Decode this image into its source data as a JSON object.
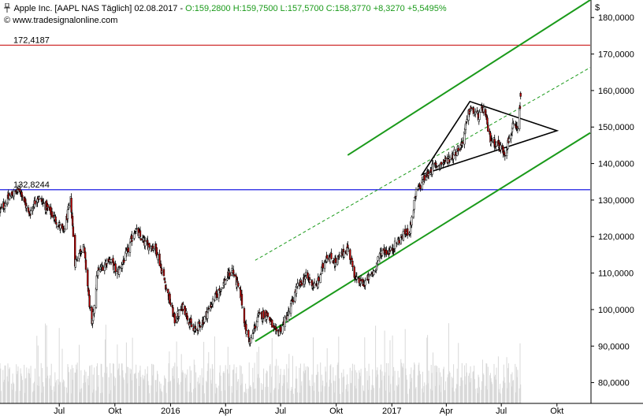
{
  "header": {
    "pin_icon": "pin-icon",
    "instrument": "Apple Inc. [AAPL NAS",
    "period": "Täglich] 02.08.2017",
    "ohlc": "O:159,2800 H:159,7500 L:157,5700 C:158,3770 +8,3270 +5,5495%",
    "watermark": "© www.tradesignalonline.com"
  },
  "currency_symbol": "$",
  "colors": {
    "background": "#ffffff",
    "channel": "#1a9a1a",
    "resistance": "#d03030",
    "support": "#0000e0",
    "candle_up": "#ffffff",
    "candle_down": "#c00000",
    "volume": "#d8d8d8",
    "triangle": "#000000"
  },
  "chart_data": {
    "type": "candlestick",
    "title": "Apple Inc. [AAPL NAS Täglich]",
    "x_axis": {
      "ticks": [
        "Jul",
        "Okt",
        "2016",
        "Apr",
        "Jul",
        "Okt",
        "2017",
        "Apr",
        "Jul",
        "Okt"
      ],
      "tick_dates": [
        "2015-07-01",
        "2015-10-01",
        "2016-01-01",
        "2016-04-01",
        "2016-07-01",
        "2016-10-01",
        "2017-01-01",
        "2017-04-01",
        "2017-07-01",
        "2017-10-01"
      ],
      "range": [
        "2015-03-25",
        "2017-11-25"
      ]
    },
    "y_axis": {
      "ticks": [
        "80,0000",
        "90,0000",
        "100,0000",
        "110,0000",
        "120,0000",
        "130,0000",
        "140,0000",
        "150,0000",
        "160,0000",
        "170,0000",
        "180,0000"
      ],
      "tick_values": [
        80,
        90,
        100,
        110,
        120,
        130,
        140,
        150,
        160,
        170,
        180
      ],
      "range": [
        74.3,
        184.8
      ]
    },
    "price_path": [
      [
        "2015-03-25",
        127
      ],
      [
        "2015-04-10",
        131
      ],
      [
        "2015-04-28",
        132.8
      ],
      [
        "2015-05-12",
        126
      ],
      [
        "2015-05-26",
        131
      ],
      [
        "2015-06-10",
        128
      ],
      [
        "2015-06-24",
        125
      ],
      [
        "2015-07-08",
        121
      ],
      [
        "2015-07-20",
        130
      ],
      [
        "2015-07-27",
        113
      ],
      [
        "2015-08-10",
        118
      ],
      [
        "2015-08-24",
        95
      ],
      [
        "2015-09-02",
        110
      ],
      [
        "2015-09-21",
        114
      ],
      [
        "2015-10-05",
        110
      ],
      [
        "2015-10-20",
        115
      ],
      [
        "2015-11-03",
        122
      ],
      [
        "2015-11-20",
        118
      ],
      [
        "2015-12-07",
        117
      ],
      [
        "2015-12-22",
        108
      ],
      [
        "2016-01-08",
        97
      ],
      [
        "2016-01-22",
        101
      ],
      [
        "2016-02-08",
        94
      ],
      [
        "2016-02-24",
        97
      ],
      [
        "2016-03-10",
        102
      ],
      [
        "2016-03-28",
        107
      ],
      [
        "2016-04-12",
        111
      ],
      [
        "2016-04-26",
        104
      ],
      [
        "2016-05-05",
        94
      ],
      [
        "2016-05-12",
        91
      ],
      [
        "2016-05-24",
        98
      ],
      [
        "2016-06-08",
        99
      ],
      [
        "2016-06-24",
        93
      ],
      [
        "2016-07-12",
        98
      ],
      [
        "2016-07-28",
        106
      ],
      [
        "2016-08-12",
        109
      ],
      [
        "2016-08-29",
        106
      ],
      [
        "2016-09-15",
        115
      ],
      [
        "2016-09-30",
        113
      ],
      [
        "2016-10-20",
        117
      ],
      [
        "2016-11-03",
        108
      ],
      [
        "2016-11-15",
        107
      ],
      [
        "2016-12-01",
        110
      ],
      [
        "2016-12-15",
        116
      ],
      [
        "2016-12-30",
        116
      ],
      [
        "2017-01-12",
        119
      ],
      [
        "2017-01-31",
        122
      ],
      [
        "2017-02-10",
        132
      ],
      [
        "2017-02-24",
        136
      ],
      [
        "2017-03-10",
        139
      ],
      [
        "2017-03-24",
        140
      ],
      [
        "2017-04-10",
        142
      ],
      [
        "2017-04-26",
        145
      ],
      [
        "2017-05-10",
        155
      ],
      [
        "2017-05-24",
        153
      ],
      [
        "2017-06-02",
        155
      ],
      [
        "2017-06-12",
        147
      ],
      [
        "2017-06-26",
        145
      ],
      [
        "2017-07-07",
        143
      ],
      [
        "2017-07-20",
        150
      ],
      [
        "2017-07-28",
        149
      ],
      [
        "2017-08-02",
        158
      ]
    ],
    "annotations": [
      {
        "type": "horizontal_line",
        "value": 172.4187,
        "label": "172,4187",
        "color": "#d03030"
      },
      {
        "type": "horizontal_line",
        "value": 132.8244,
        "label": "132,8244",
        "color": "#0000e0"
      },
      {
        "type": "trendline",
        "name": "channel-upper",
        "points": [
          [
            "2016-10-20",
            142.3
          ],
          [
            "2017-11-25",
            184.8
          ]
        ],
        "color": "#1a9a1a"
      },
      {
        "type": "trendline",
        "name": "channel-lower",
        "points": [
          [
            "2016-05-20",
            91.3
          ],
          [
            "2017-11-25",
            148.4
          ]
        ],
        "color": "#1a9a1a"
      },
      {
        "type": "trendline",
        "name": "channel-mid-dashed",
        "points": [
          [
            "2016-05-20",
            113.5
          ],
          [
            "2017-11-25",
            166.3
          ]
        ],
        "color": "#1a9a1a",
        "dashed": true
      },
      {
        "type": "triangle",
        "points": [
          [
            "2017-02-20",
            137
          ],
          [
            "2017-05-10",
            157
          ],
          [
            "2017-10-01",
            149
          ]
        ],
        "color": "#000000"
      }
    ],
    "volume": {
      "shown": true,
      "baseline_price_units": 74.3
    }
  }
}
